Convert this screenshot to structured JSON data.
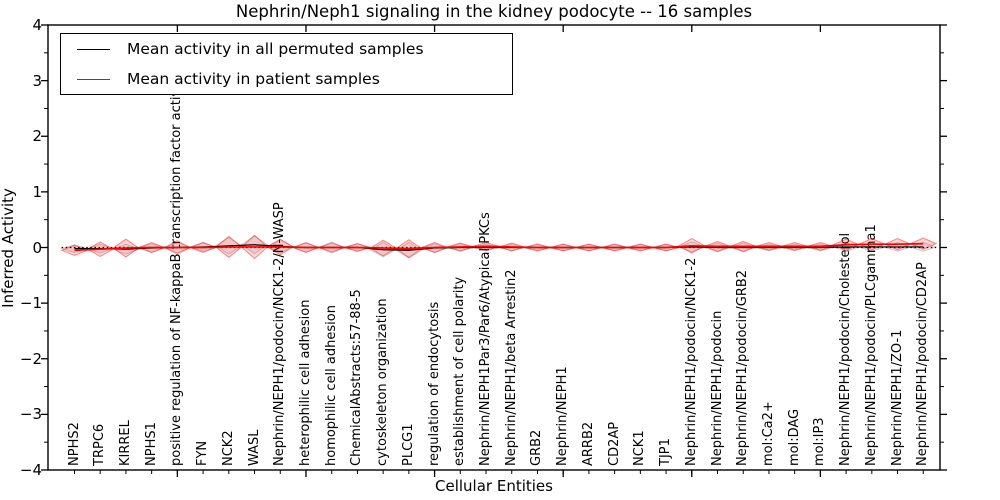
{
  "title": "Nephrin/Neph1 signaling in the kidney podocyte -- 16 samples",
  "legend": {
    "items": [
      {
        "label": "Mean activity in all permuted samples",
        "color": "#000000"
      },
      {
        "label": "Mean activity in patient samples",
        "color": "#ff0000"
      }
    ]
  },
  "chart_data": {
    "type": "line",
    "title": "Nephrin/Neph1 signaling in the kidney podocyte -- 16 samples",
    "xlabel": "Cellular Entities",
    "ylabel": "Inferred Activity",
    "ylim": [
      -4,
      4
    ],
    "yticks": [
      4,
      3,
      2,
      1,
      0,
      -1,
      -2,
      -3,
      -4
    ],
    "grid": false,
    "legend_position": "upper left",
    "zero_line": true,
    "categories": [
      "NPHS2",
      "TRPC6",
      "KIRREL",
      "NPHS1",
      "positive regulation of NF-kappaB transcription factor activity",
      "FYN",
      "NCK2",
      "WASL",
      "Nephrin/NEPH1/podocin/NCK1-2/N-WASP",
      "heterophilic cell adhesion",
      "homophilic cell adhesion",
      "ChemicalAbstracts:57-88-5",
      "cytoskeleton organization",
      "PLCG1",
      "regulation of endocytosis",
      "establishment of cell polarity",
      "Nephrin/NEPH1Par3/Par6/Atypical PKCs",
      "Nephrin/NEPH1/beta Arrestin2",
      "GRB2",
      "Nephrin/NEPH1",
      "ARRB2",
      "CD2AP",
      "NCK1",
      "TJP1",
      "Nephrin/NEPH1/podocin/NCK1-2",
      "Nephrin/NEPH1/podocin",
      "Nephrin/NEPH1/podocin/GRB2",
      "mol:Ca2+",
      "mol:DAG",
      "mol:IP3",
      "Nephrin/NEPH1/podocin/Cholesterol",
      "Nephrin/NEPH1/podocin/PLCgamma1",
      "Nephrin/NEPH1/ZO-1",
      "Nephrin/NEPH1/podocin/CD2AP"
    ],
    "series": [
      {
        "name": "Mean activity in all permuted samples",
        "color": "#000000",
        "fill": "rgba(0,0,0,0.07)",
        "edge": "rgba(0,0,0,0.18)",
        "values": [
          -0.02,
          -0.02,
          -0.03,
          -0.01,
          0.0,
          0.01,
          0.03,
          0.05,
          0.02,
          0.0,
          0.0,
          0.0,
          -0.04,
          -0.05,
          -0.01,
          0.0,
          0.0,
          0.0,
          0.0,
          0.0,
          0.0,
          0.0,
          0.0,
          0.0,
          0.01,
          0.0,
          0.0,
          0.0,
          0.0,
          0.0,
          0.01,
          0.01,
          0.01,
          0.01
        ],
        "spread": [
          0.07,
          0.08,
          0.09,
          0.08,
          0.13,
          0.08,
          0.15,
          0.16,
          0.12,
          0.08,
          0.1,
          0.07,
          0.13,
          0.14,
          0.08,
          0.07,
          0.06,
          0.06,
          0.06,
          0.06,
          0.06,
          0.06,
          0.06,
          0.06,
          0.09,
          0.08,
          0.08,
          0.06,
          0.06,
          0.06,
          0.08,
          0.08,
          0.08,
          0.08
        ]
      },
      {
        "name": "Mean activity in patient samples",
        "color": "#ff0000",
        "fill": "rgba(255,0,0,0.16)",
        "edge": "rgba(255,0,0,0.45)",
        "values": [
          -0.05,
          -0.03,
          -0.01,
          0.0,
          0.0,
          0.0,
          0.01,
          0.01,
          0.01,
          0.0,
          0.0,
          0.0,
          -0.01,
          -0.02,
          0.0,
          0.01,
          0.02,
          0.01,
          0.0,
          0.0,
          0.0,
          0.0,
          0.0,
          0.0,
          0.03,
          0.02,
          0.02,
          0.02,
          0.02,
          0.02,
          0.05,
          0.06,
          0.06,
          0.07
        ],
        "spread": [
          0.09,
          0.13,
          0.16,
          0.09,
          0.1,
          0.09,
          0.19,
          0.21,
          0.14,
          0.09,
          0.08,
          0.07,
          0.14,
          0.16,
          0.09,
          0.07,
          0.07,
          0.07,
          0.06,
          0.06,
          0.06,
          0.06,
          0.06,
          0.06,
          0.13,
          0.09,
          0.09,
          0.07,
          0.07,
          0.07,
          0.1,
          0.1,
          0.1,
          0.1
        ]
      }
    ]
  }
}
